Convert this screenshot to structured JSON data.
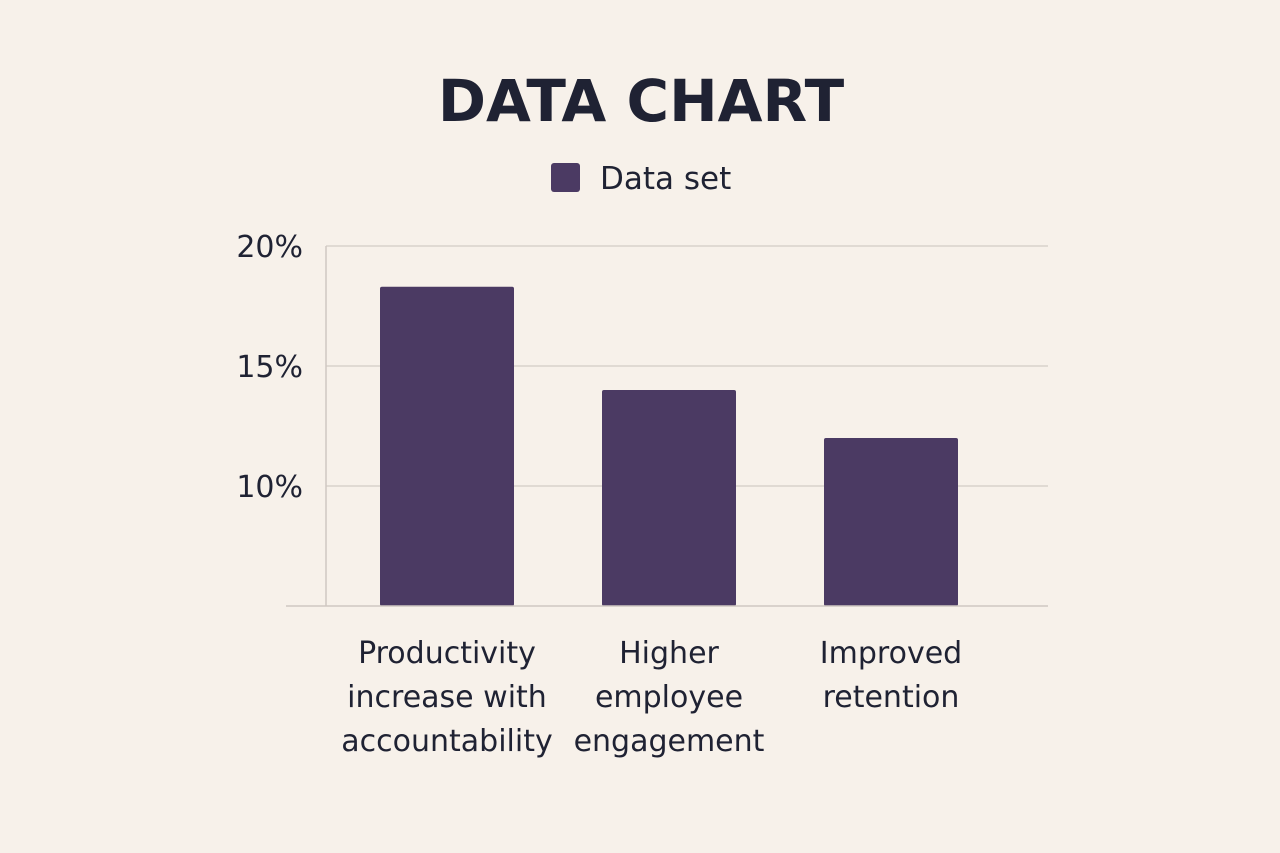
{
  "chart_data": {
    "type": "bar",
    "title": "DATA CHART",
    "xlabel": "",
    "ylabel": "",
    "categories": [
      [
        "Productivity",
        "increase with",
        "accountability"
      ],
      [
        "Higher",
        "employee",
        "engagement"
      ],
      [
        "Improved",
        "retention"
      ]
    ],
    "series": [
      {
        "name": "Data set",
        "values": [
          18.3,
          14.0,
          12.0
        ]
      }
    ],
    "ylim": [
      5,
      20
    ],
    "yticks": [
      {
        "value": 20,
        "label": "20%"
      },
      {
        "value": 15,
        "label": "15%"
      },
      {
        "value": 10,
        "label": "10%"
      }
    ],
    "legend_position": "top-center",
    "grid": true,
    "colors": {
      "bar": "#4b3a63",
      "grid": "#d9d2cb",
      "axis": "#cfc8c1"
    }
  }
}
